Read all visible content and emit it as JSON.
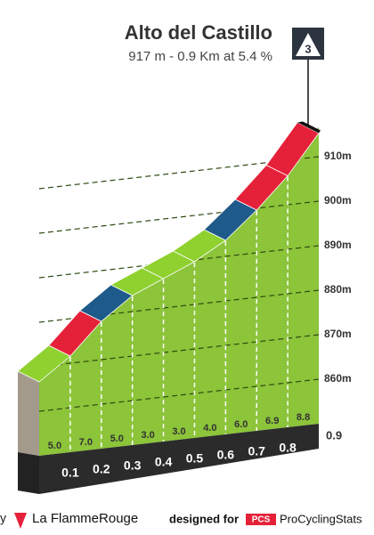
{
  "chart_data": {
    "type": "climb-profile",
    "title": "Alto del Castillo",
    "subtitle": "917 m - 0.9 Km at 5.4 %",
    "category": "3",
    "x": [
      0,
      0.1,
      0.2,
      0.3,
      0.4,
      0.5,
      0.6,
      0.7,
      0.8,
      0.9
    ],
    "elevation": [
      868,
      873,
      880,
      885,
      888,
      891,
      895,
      901,
      907.9,
      916.7
    ],
    "gradients": [
      5,
      7,
      5,
      3,
      3,
      4,
      6,
      6.9,
      8.8
    ],
    "gradient_labels": [
      "5.0",
      "7.0",
      "5.0",
      "3.0",
      "3.0",
      "4.0",
      "6.0",
      "6.9",
      "8.8"
    ],
    "segment_colors": [
      "#8fd12f",
      "#e5213a",
      "#1e5a8a",
      "#8fd12f",
      "#8fd12f",
      "#8fd12f",
      "#1e5a8a",
      "#e5213a",
      "#e5213a"
    ],
    "fill_color": "#8cc43a",
    "xlim": [
      0,
      0.9
    ],
    "xticks": [
      0.1,
      0.2,
      0.3,
      0.4,
      0.5,
      0.6,
      0.7,
      0.8,
      0.9
    ],
    "ylim": [
      850,
      920
    ],
    "yticks": [
      {
        "value": 860,
        "label": "860m"
      },
      {
        "value": 870,
        "label": "870m"
      },
      {
        "value": 880,
        "label": "880m"
      },
      {
        "value": 890,
        "label": "890m"
      },
      {
        "value": 900,
        "label": "900m"
      },
      {
        "value": 910,
        "label": "910m"
      }
    ],
    "footer": {
      "left": "y",
      "brand": "La FlammeRouge",
      "designed": "designed for",
      "pcs": "PCS",
      "site": "ProCyclingStats"
    }
  }
}
